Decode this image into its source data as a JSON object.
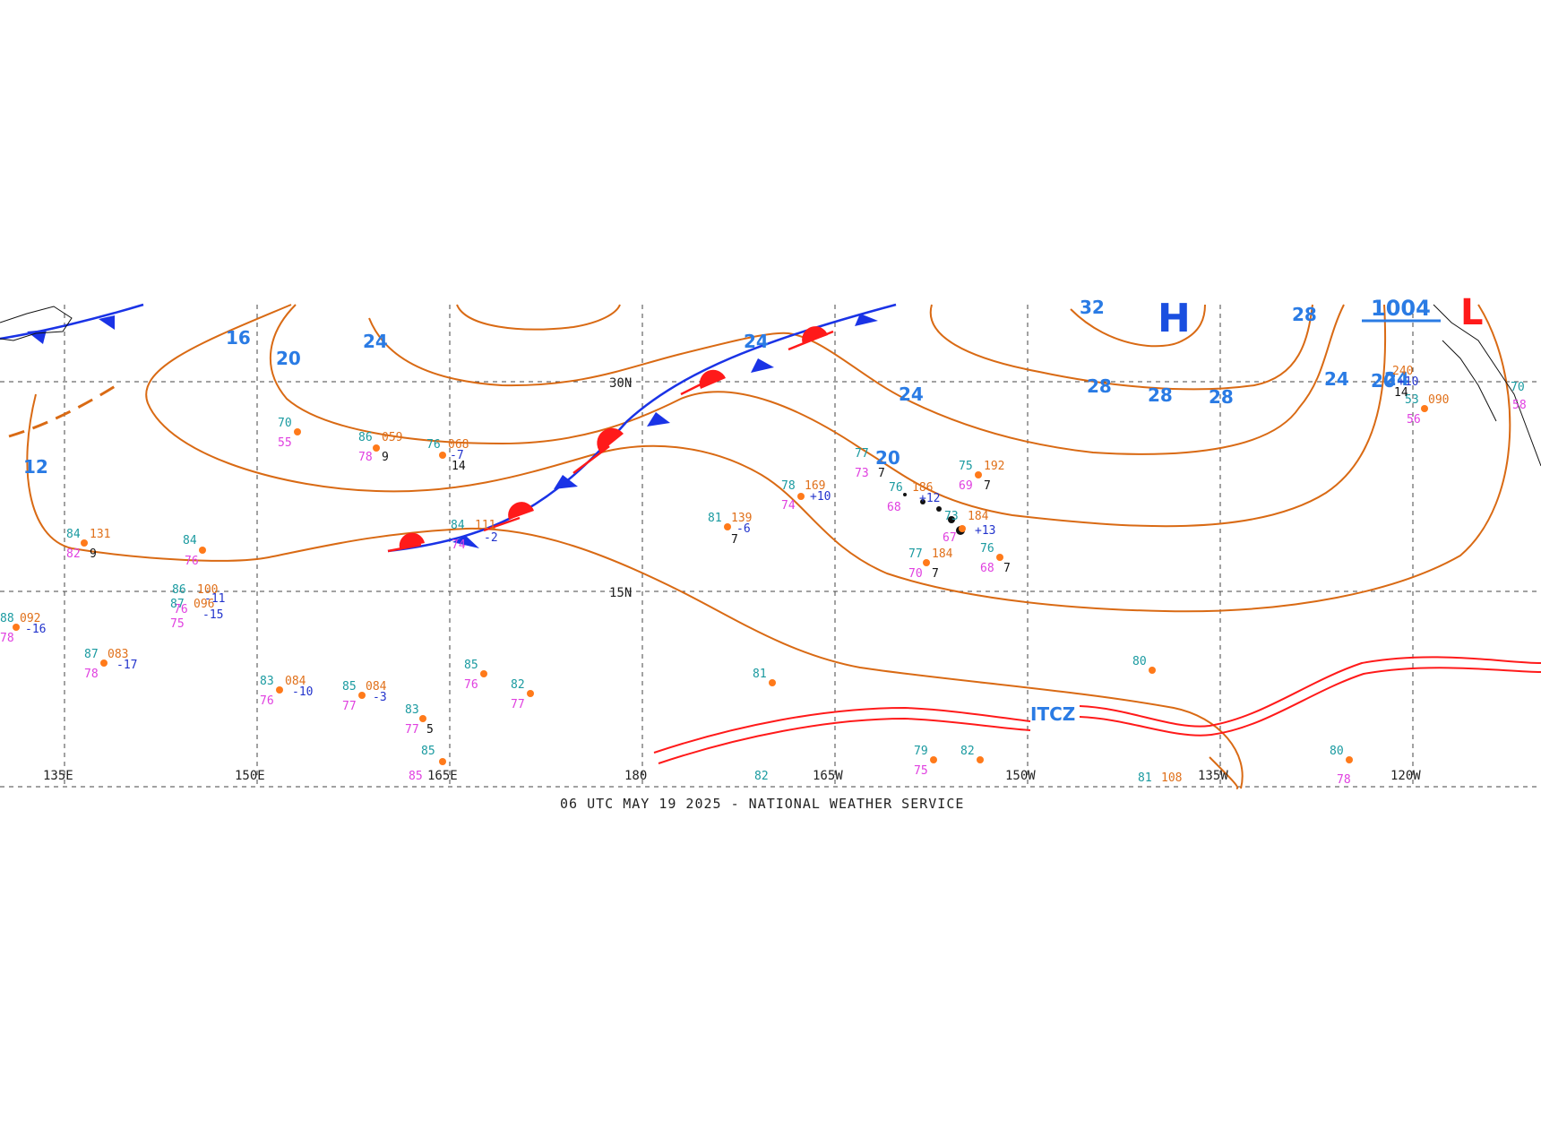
{
  "caption": "06 UTC MAY 19 2025 - NATIONAL WEATHER SERVICE",
  "longitude_labels": [
    "135E",
    "150E",
    "165E",
    "180",
    "165W",
    "150W",
    "135W",
    "120W"
  ],
  "latitude_labels": [
    "30N",
    "15N"
  ],
  "isobar_labels": [
    "12",
    "16",
    "20",
    "24",
    "24",
    "24",
    "20",
    "24",
    "28",
    "28",
    "28",
    "28",
    "24",
    "20",
    "32"
  ],
  "pressure_centers": {
    "high": "H",
    "low": "L",
    "low_pressure_value": "1004"
  },
  "itcz_label": "ITCZ",
  "colors": {
    "isobar": "#d96a14",
    "isobar_label": "#2a7be4",
    "warm_front": "#ff1a1a",
    "cold_front": "#1a33e6",
    "itcz": "#ff1a1a",
    "temperature": "#1a9aa0",
    "dewpoint": "#e040e0",
    "pressure": "#e0701a"
  },
  "stations": [
    {
      "t": "70",
      "d": "55"
    },
    {
      "t": "86",
      "p": "059",
      "d": "78",
      "v": "9"
    },
    {
      "t": "76",
      "p": "068",
      "d": "-7",
      "v": "14"
    },
    {
      "t": "84",
      "p": "131",
      "d": "82",
      "v": "9"
    },
    {
      "t": "84",
      "d": "76"
    },
    {
      "t": "84",
      "p": "111",
      "d": "74",
      "v": "-2"
    },
    {
      "t": "86",
      "p": "100",
      "d": "76",
      "v": "-11"
    },
    {
      "t": "87",
      "p": "096",
      "d": "75",
      "v": "-15"
    },
    {
      "t": "88",
      "p": "092",
      "d": "78",
      "v": "-16"
    },
    {
      "t": "87",
      "p": "083",
      "d": "78",
      "v": "-17"
    },
    {
      "t": "83",
      "p": "084",
      "d": "76",
      "v": "-10"
    },
    {
      "t": "85",
      "p": "084",
      "d": "77",
      "v": "-3"
    },
    {
      "t": "85",
      "d": "76"
    },
    {
      "t": "82",
      "d": "77"
    },
    {
      "t": "83",
      "d": "77",
      "v": "5"
    },
    {
      "t": "85",
      "d": "85"
    },
    {
      "t": "78",
      "p": "169",
      "d": "74",
      "v": "+10"
    },
    {
      "t": "81",
      "p": "139",
      "d": "-6",
      "v": "7"
    },
    {
      "t": "77",
      "d": "73",
      "v": "7"
    },
    {
      "t": "76",
      "p": "186",
      "d": "68",
      "v": "+12"
    },
    {
      "t": "75",
      "p": "192",
      "d": "69",
      "v": "7"
    },
    {
      "t": "73",
      "p": "184",
      "d": "67",
      "v": "+13"
    },
    {
      "t": "77",
      "p": "184",
      "d": "70",
      "v": "7"
    },
    {
      "t": "76",
      "d": "68",
      "v": "7"
    },
    {
      "t": "81"
    },
    {
      "t": "80"
    },
    {
      "t": "79",
      "d": "75"
    },
    {
      "t": "82"
    },
    {
      "t": "81",
      "p": "108"
    },
    {
      "t": "80",
      "d": "78"
    },
    {
      "t": "82"
    },
    {
      "t": "53",
      "p": "090",
      "d": "56"
    },
    {
      "t": "240",
      "p": "+10",
      "d": "14"
    },
    {
      "t": "70",
      "d": "58"
    }
  ]
}
